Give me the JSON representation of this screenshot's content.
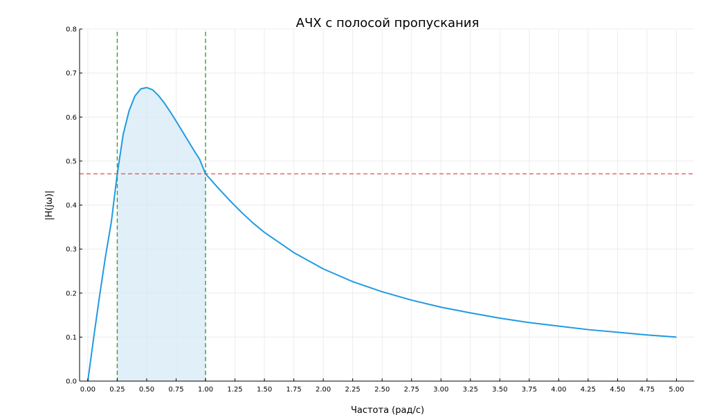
{
  "chart_data": {
    "type": "line",
    "title": "АЧХ с полосой пропускания",
    "xlabel": "Частота (рад/с)",
    "ylabel": "|H(jω)|",
    "xlim": [
      -0.07,
      5.15
    ],
    "ylim": [
      0,
      0.8
    ],
    "xticks": [
      "0.00",
      "0.25",
      "0.50",
      "0.75",
      "1.00",
      "1.25",
      "1.50",
      "1.75",
      "2.00",
      "2.25",
      "2.50",
      "2.75",
      "3.00",
      "3.25",
      "3.50",
      "3.75",
      "4.00",
      "4.25",
      "4.50",
      "4.75",
      "5.00"
    ],
    "yticks": [
      "0.0",
      "0.1",
      "0.2",
      "0.3",
      "0.4",
      "0.5",
      "0.6",
      "0.7",
      "0.8"
    ],
    "grid": true,
    "series": [
      {
        "color": "#1f9ae0",
        "x": [
          0,
          0.05,
          0.1,
          0.15,
          0.2,
          0.25,
          0.3,
          0.35,
          0.4,
          0.45,
          0.5,
          0.55,
          0.6,
          0.65,
          0.7,
          0.75,
          0.8,
          0.85,
          0.9,
          0.95,
          1.0,
          1.1,
          1.2,
          1.3,
          1.4,
          1.5,
          1.75,
          2.0,
          2.25,
          2.5,
          2.75,
          3.0,
          3.25,
          3.5,
          3.75,
          4.0,
          4.25,
          4.5,
          4.75,
          5.0
        ],
        "y": [
          0,
          0.099,
          0.194,
          0.283,
          0.362,
          0.471,
          0.56,
          0.614,
          0.648,
          0.664,
          0.667,
          0.662,
          0.649,
          0.632,
          0.612,
          0.591,
          0.569,
          0.547,
          0.525,
          0.504,
          0.471,
          0.441,
          0.412,
          0.385,
          0.36,
          0.338,
          0.292,
          0.255,
          0.226,
          0.203,
          0.184,
          0.168,
          0.155,
          0.143,
          0.133,
          0.125,
          0.117,
          0.111,
          0.105,
          0.1
        ]
      }
    ],
    "threshold_y": 0.471,
    "band": [
      0.25,
      1.0
    ],
    "colors": {
      "curve": "#1f9ae0",
      "band_fill": "#d6eaf5",
      "threshold": "#e0393e",
      "band_edges": "#3a9a3a",
      "grid": "#ececec"
    }
  }
}
